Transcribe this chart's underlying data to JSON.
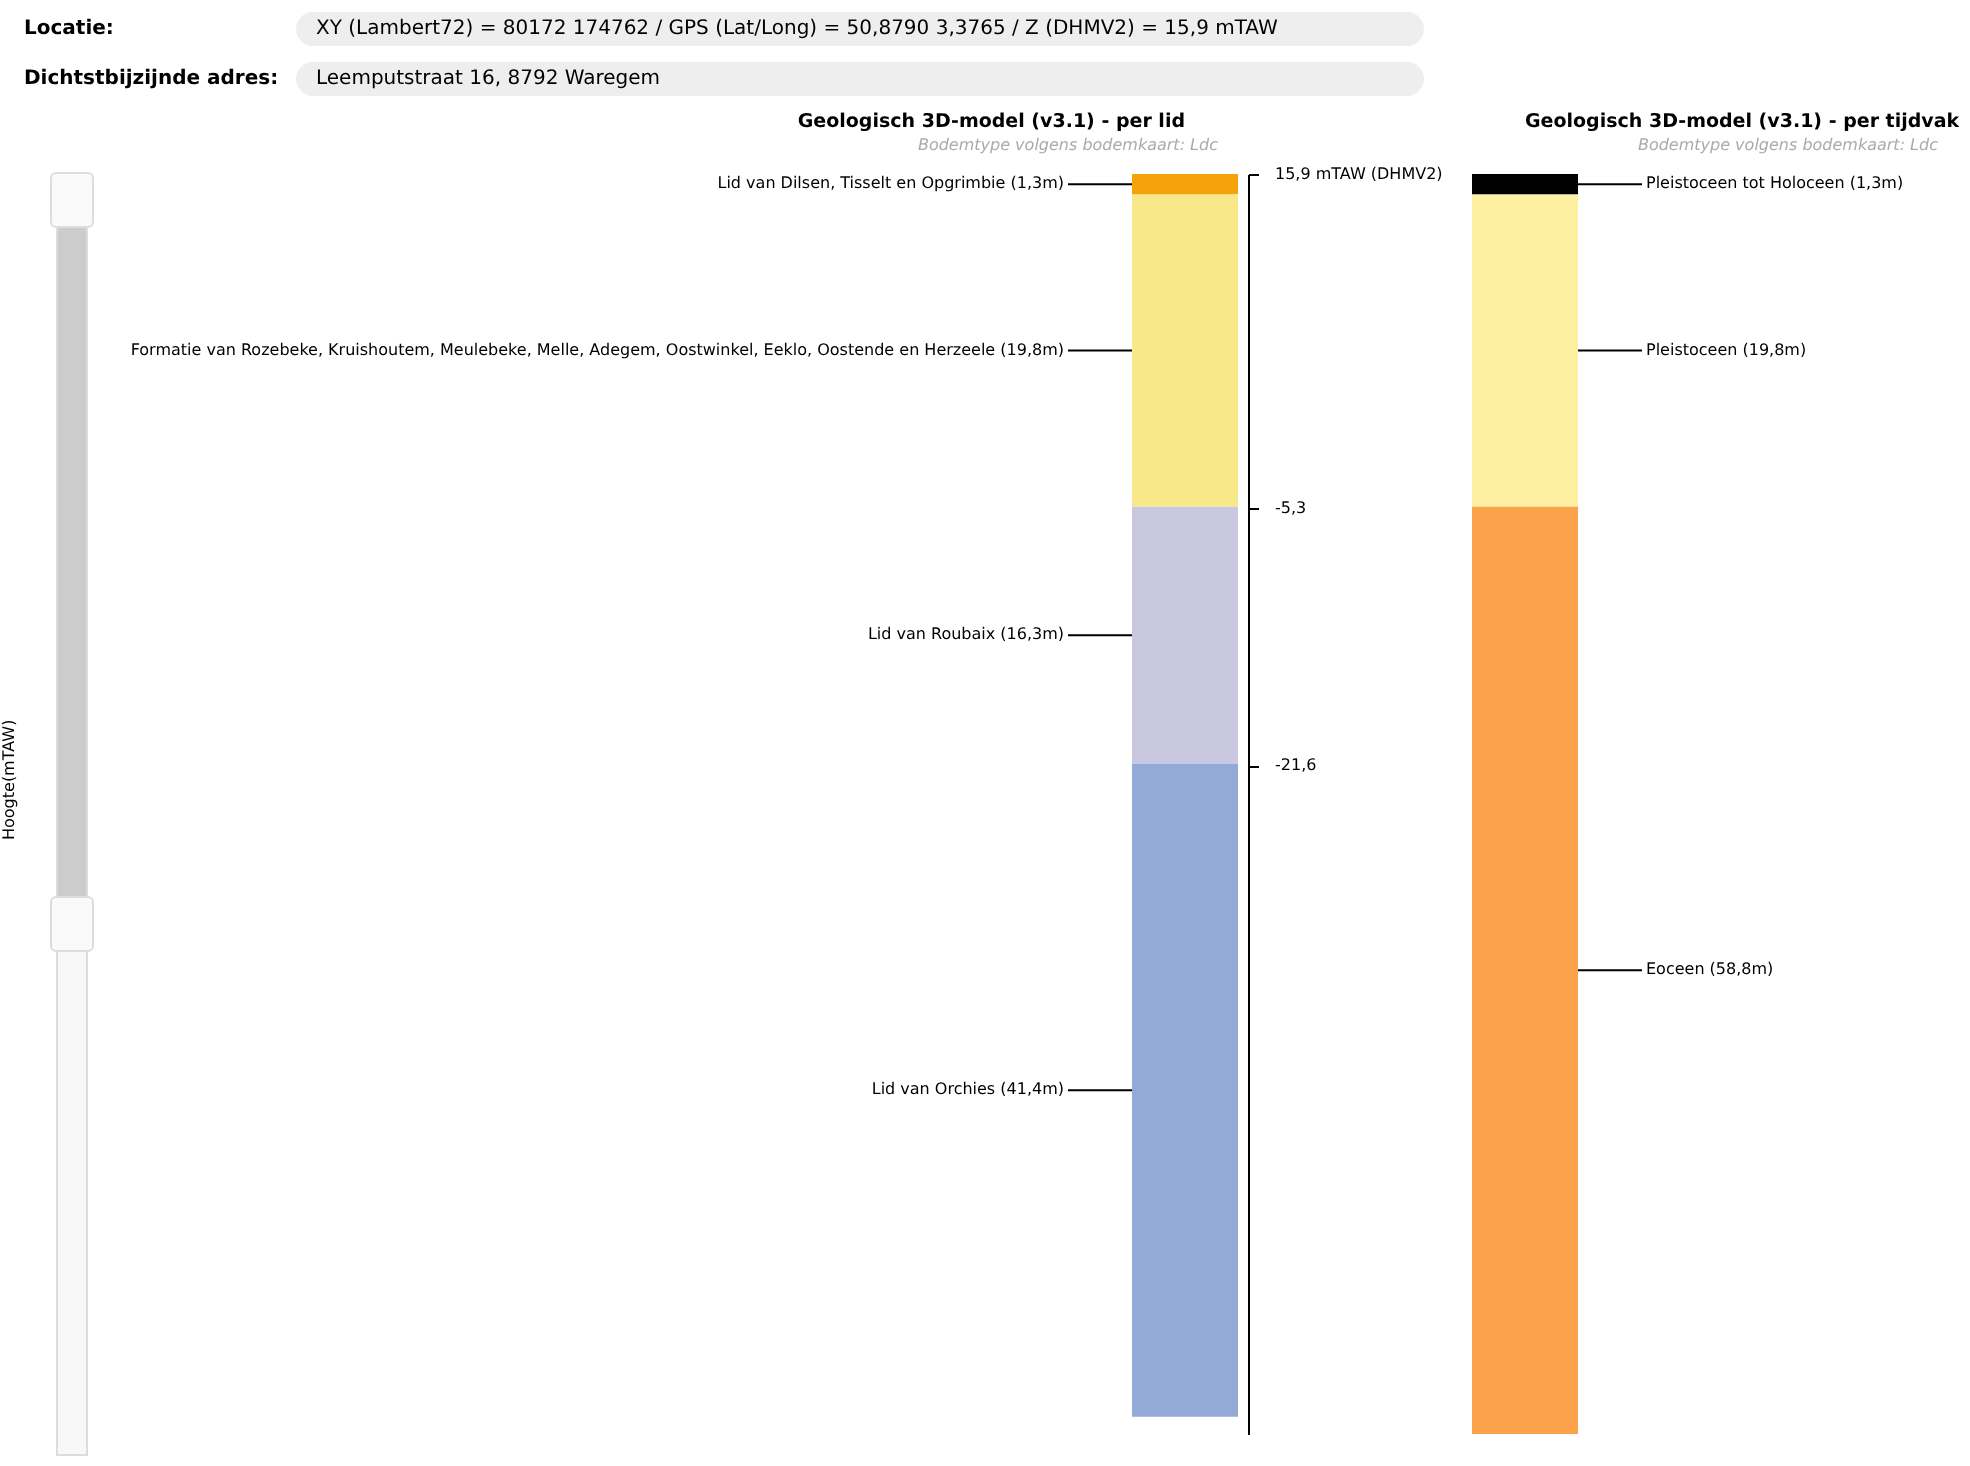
{
  "chart_data": {
    "type": "bar",
    "categories": [
      "Geologisch 3D-model (v3.1) - per lid",
      "Geologisch 3D-model (v3.1) - per tijdvak"
    ],
    "annotations": [
      "Locatie:",
      "XY (Lambert72) = 80172 174762 / GPS (Lat/Long) = 50,8790 3,3765 / Z (DHMV2) = 15,9 mTAW",
      "Dichtstbijzijnde adres:",
      "Leemputstraat 16, 8792 Waregem",
      "Bodemtype volgens bodemkaart: Ldc",
      "Bodemtype volgens bodemkaart: Ldc",
      "Hoogte(mTAW)"
    ],
    "ylim": [
      -64,
      15.9
    ],
    "yticks": [
      {
        "value": 15.9,
        "label": "15,9 mTAW (DHMV2)"
      },
      {
        "value": -5.3,
        "label": "-5,3"
      },
      {
        "value": -21.6,
        "label": "-21,6"
      }
    ],
    "grid": false,
    "legend": false,
    "series": [
      {
        "name": "Lid van Dilsen, Tisselt en Opgrimbie (1,3m)",
        "color": "#f5a30a",
        "base": [
          15.9,
          null
        ],
        "values": [
          -1.3,
          null
        ]
      },
      {
        "name": "Formatie van Rozebeke, Kruishoutem, Meulebeke, Melle, Adegem, Oostwinkel, Eeklo, Oostende en Herzeele (19,8m)",
        "color": "#f8e88a",
        "base": [
          14.6,
          null
        ],
        "values": [
          -19.8,
          null
        ]
      },
      {
        "name": "Lid van Roubaix (16,3m)",
        "color": "#cac8e0",
        "base": [
          -5.2,
          null
        ],
        "values": [
          -16.3,
          null
        ]
      },
      {
        "name": "Lid van Orchies (41,4m)",
        "color": "#94aad6",
        "base": [
          -21.5,
          null
        ],
        "values": [
          -41.4,
          null
        ]
      },
      {
        "name": "Pleistoceen tot Holoceen (1,3m)",
        "color": "#000000",
        "base": [
          null,
          15.9
        ],
        "values": [
          null,
          -1.3
        ]
      },
      {
        "name": "Pleistoceen (19,8m)",
        "color": "#fdf0a0",
        "base": [
          null,
          14.6
        ],
        "values": [
          null,
          -19.8
        ]
      },
      {
        "name": "Eoceen (58,8m)",
        "color": "#fba24a",
        "base": [
          null,
          -5.2
        ],
        "values": [
          null,
          -58.8
        ]
      }
    ]
  }
}
